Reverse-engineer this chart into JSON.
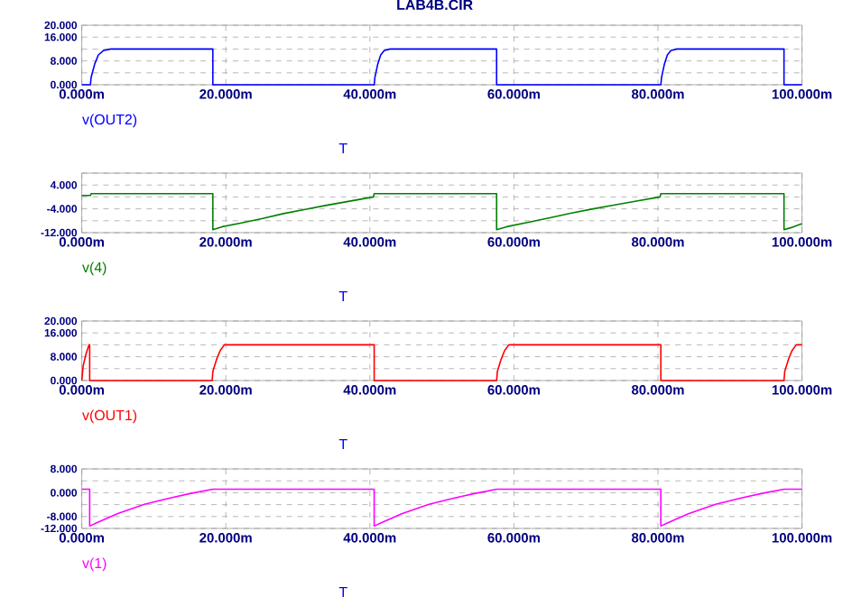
{
  "chart_data": [
    {
      "type": "line",
      "title": "LAB4B.CIR",
      "xlabel": "T",
      "xlim": [
        0,
        100
      ],
      "xticks": [
        {
          "value": 0,
          "label": "0.000m"
        },
        {
          "value": 20,
          "label": "20.000m"
        },
        {
          "value": 40,
          "label": "40.000m"
        },
        {
          "value": 60,
          "label": "60.000m"
        },
        {
          "value": 80,
          "label": "80.000m"
        },
        {
          "value": 100,
          "label": "100.000m"
        }
      ],
      "ylim": [
        0,
        20
      ],
      "yticks": [
        {
          "value": 0,
          "label": "0.000"
        },
        {
          "value": 4,
          "label": null
        },
        {
          "value": 8,
          "label": "8.000"
        },
        {
          "value": 12,
          "label": null
        },
        {
          "value": 16,
          "label": "16.000"
        },
        {
          "value": 20,
          "label": "20.000"
        }
      ],
      "grid": true,
      "legend": "bottom left",
      "series": [
        {
          "name": "v(OUT2)",
          "color": "#0000ff",
          "x": [
            0,
            1.2,
            1.3,
            1.8,
            2.3,
            3,
            4,
            18.2,
            18.2,
            40.6,
            40.7,
            41.1,
            41.5,
            42,
            42.8,
            57.6,
            57.6,
            80.4,
            80.5,
            80.9,
            81.3,
            81.8,
            82.6,
            97.5,
            97.5,
            100
          ],
          "values": [
            0,
            0,
            2.5,
            7,
            10,
            11.5,
            12,
            12,
            0,
            0,
            2.5,
            7,
            10,
            11.5,
            12,
            12,
            0,
            0,
            2.5,
            7,
            10,
            11.5,
            12,
            12,
            0,
            0
          ]
        }
      ]
    },
    {
      "type": "line",
      "xlabel": "T",
      "xlim": [
        0,
        100
      ],
      "xticks": [
        {
          "value": 0,
          "label": "0.000m"
        },
        {
          "value": 20,
          "label": "20.000m"
        },
        {
          "value": 40,
          "label": "40.000m"
        },
        {
          "value": 60,
          "label": "60.000m"
        },
        {
          "value": 80,
          "label": "80.000m"
        },
        {
          "value": 100,
          "label": "100.000m"
        }
      ],
      "ylim": [
        -12,
        8
      ],
      "yticks": [
        {
          "value": -12,
          "label": "-12.000"
        },
        {
          "value": -8,
          "label": null
        },
        {
          "value": -4,
          "label": "-4.000"
        },
        {
          "value": 0,
          "label": null
        },
        {
          "value": 4,
          "label": "4.000"
        },
        {
          "value": 8,
          "label": null
        }
      ],
      "grid": true,
      "legend": "bottom left",
      "series": [
        {
          "name": "v(4)",
          "color": "#008000",
          "x": [
            0,
            1.2,
            1.3,
            18.2,
            18.2,
            19.5,
            22,
            25,
            28,
            31,
            34,
            37,
            40.5,
            40.6,
            57.6,
            57.6,
            59,
            62,
            65,
            68,
            71,
            74,
            77,
            80.3,
            80.4,
            97.5,
            97.5,
            98.5,
            100
          ],
          "values": [
            0.5,
            0.5,
            1.1,
            1.1,
            -11,
            -10,
            -8.8,
            -7.3,
            -5.6,
            -4.2,
            -2.8,
            -1.5,
            0,
            1.1,
            1.1,
            -11,
            -10,
            -8.5,
            -7,
            -5.4,
            -4,
            -2.7,
            -1.4,
            0,
            1.1,
            1.1,
            -11,
            -10.3,
            -9
          ]
        }
      ]
    },
    {
      "type": "line",
      "xlabel": "T",
      "xlim": [
        0,
        100
      ],
      "xticks": [
        {
          "value": 0,
          "label": "0.000m"
        },
        {
          "value": 20,
          "label": "20.000m"
        },
        {
          "value": 40,
          "label": "40.000m"
        },
        {
          "value": 60,
          "label": "60.000m"
        },
        {
          "value": 80,
          "label": "80.000m"
        },
        {
          "value": 100,
          "label": "100.000m"
        }
      ],
      "ylim": [
        0,
        20
      ],
      "yticks": [
        {
          "value": 0,
          "label": "0.000"
        },
        {
          "value": 4,
          "label": null
        },
        {
          "value": 8,
          "label": "8.000"
        },
        {
          "value": 12,
          "label": null
        },
        {
          "value": 16,
          "label": "16.000"
        },
        {
          "value": 20,
          "label": "20.000"
        }
      ],
      "grid": true,
      "legend": "bottom left",
      "series": [
        {
          "name": "v(OUT1)",
          "color": "#ff0000",
          "x": [
            0,
            0.2,
            0.6,
            1,
            1.1,
            1.1,
            18.1,
            18.2,
            18.7,
            19.2,
            19.8,
            40.6,
            40.6,
            57.6,
            57.7,
            58.2,
            58.7,
            59.3,
            80.4,
            80.4,
            97.5,
            97.6,
            98.1,
            98.6,
            99.2,
            100
          ],
          "values": [
            0,
            5,
            9,
            12,
            12,
            0,
            0,
            3,
            7,
            10,
            12,
            12,
            0,
            0,
            3,
            7,
            10,
            12,
            12,
            0,
            0,
            3,
            7,
            10,
            12,
            12
          ]
        }
      ]
    },
    {
      "type": "line",
      "xlabel": "T",
      "xlim": [
        0,
        100
      ],
      "xticks": [
        {
          "value": 0,
          "label": "0.000m"
        },
        {
          "value": 20,
          "label": "20.000m"
        },
        {
          "value": 40,
          "label": "40.000m"
        },
        {
          "value": 60,
          "label": "60.000m"
        },
        {
          "value": 80,
          "label": "80.000m"
        },
        {
          "value": 100,
          "label": "100.000m"
        }
      ],
      "ylim": [
        -12,
        8
      ],
      "yticks": [
        {
          "value": -12,
          "label": "-12.000"
        },
        {
          "value": -8,
          "label": "-8.000"
        },
        {
          "value": -4,
          "label": null
        },
        {
          "value": 0,
          "label": "0.000"
        },
        {
          "value": 4,
          "label": null
        },
        {
          "value": 8,
          "label": "8.000"
        }
      ],
      "grid": true,
      "legend": "bottom left",
      "series": [
        {
          "name": "v(1)",
          "color": "#ff00ff",
          "x": [
            0,
            1.1,
            1.1,
            2,
            5,
            8.7,
            12,
            15,
            18.2,
            40.6,
            40.6,
            41.5,
            44.5,
            48.2,
            51.5,
            54.5,
            57.6,
            80.4,
            80.4,
            81.3,
            84.3,
            88,
            91.3,
            94.3,
            97.5,
            100
          ],
          "values": [
            1.2,
            1.2,
            -11.2,
            -10.2,
            -7,
            -3.9,
            -1.9,
            -0.3,
            1.2,
            1.2,
            -11.2,
            -10.2,
            -7,
            -3.9,
            -1.9,
            -0.3,
            1.2,
            1.2,
            -11.2,
            -10.2,
            -7,
            -3.9,
            -1.9,
            -0.3,
            1.2,
            1.2
          ]
        }
      ]
    }
  ]
}
